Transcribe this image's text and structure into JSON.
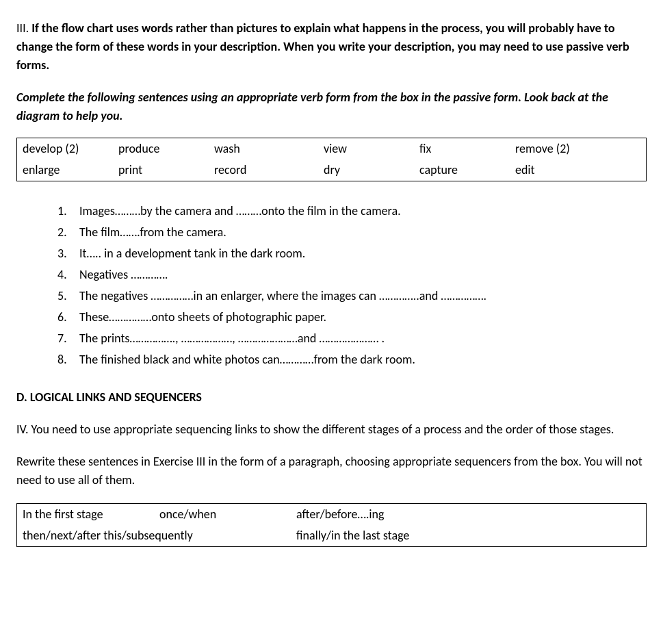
{
  "section3": {
    "prefix": "III.  ",
    "bold": "If the flow chart uses words rather than pictures to explain what happens in the process, you will probably have to change the form of these words in your description. When you write your description, you may need to use passive verb forms."
  },
  "instruction1": "Complete the following sentences using an appropriate verb form from the box in the passive form. Look back at the diagram to help you.",
  "wordBox": {
    "row1": [
      "develop (2)",
      "produce",
      "wash",
      "view",
      "fix",
      "remove (2)"
    ],
    "row2": [
      "enlarge",
      "print",
      " record",
      " dry",
      "capture",
      " edit"
    ]
  },
  "list": {
    "items": [
      {
        "num": "1.",
        "text": "Images………by the camera and ………onto the film in the camera."
      },
      {
        "num": "2.",
        "text": "The film…….from the camera."
      },
      {
        "num": "3.",
        "text": "It….. in a development tank in the dark room."
      },
      {
        "num": "4.",
        "text": "Negatives …………."
      },
      {
        "num": "5.",
        "text": "The negatives ……………in an enlarger, where the images can …………..and ……………."
      },
      {
        "num": "6.",
        "text": "These……………onto sheets of photographic paper."
      },
      {
        "num": "7.",
        "text": "The prints……………., ………………, …………………and ………………… ."
      },
      {
        "num": "8.",
        "text": "The finished black and white photos can…………from the dark room."
      }
    ]
  },
  "sectionD": "D.  LOGICAL LINKS AND SEQUENCERS",
  "para4": "IV. You need to use appropriate sequencing links to show the different stages of a process and the order of those stages.",
  "para5": "Rewrite these sentences in Exercise III in the form of a paragraph, choosing appropriate sequencers from the box. You will not need to use all of them.",
  "seqBox": {
    "row1": [
      "In the first stage",
      "once/when",
      " after/before….ing"
    ],
    "row2": [
      "then/next/after this/subsequently",
      " finally/in the last stage"
    ]
  }
}
